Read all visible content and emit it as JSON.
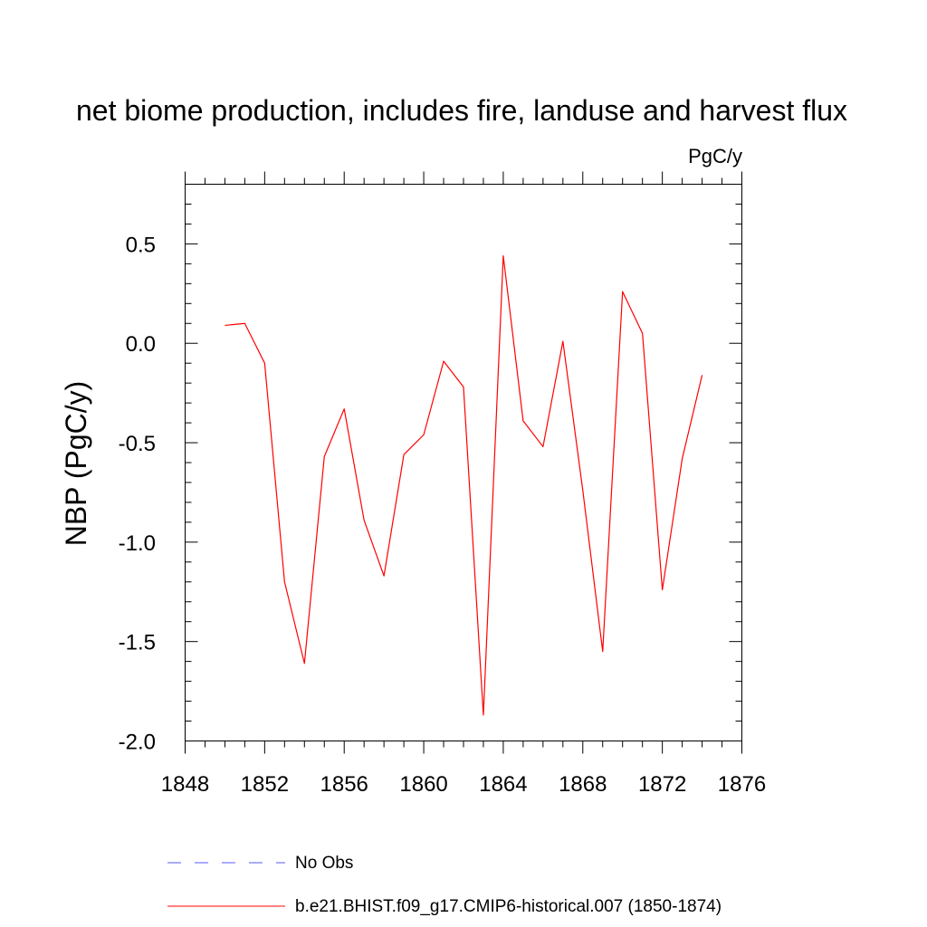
{
  "chart_data": {
    "type": "line",
    "title": "net biome production, includes fire, landuse and harvest flux",
    "units_label": "PgC/y",
    "ylabel": "NBP  (PgC/y)",
    "xlabel": "",
    "xlim": [
      1848,
      1876
    ],
    "ylim": [
      -2.0,
      0.8
    ],
    "x_ticks": [
      1848,
      1852,
      1856,
      1860,
      1864,
      1868,
      1872,
      1876
    ],
    "x_tick_labels": [
      "1848",
      "1852",
      "1856",
      "1860",
      "1864",
      "1868",
      "1872",
      "1876"
    ],
    "y_ticks": [
      -2.0,
      -1.5,
      -1.0,
      -0.5,
      0.0,
      0.5
    ],
    "y_tick_labels": [
      "-2.0",
      "-1.5",
      "-1.0",
      "-0.5",
      "0.0",
      "0.5"
    ],
    "grid": false,
    "legend_position": "bottom",
    "series": [
      {
        "name": "b.e21.BHIST.f09_g17.CMIP6-historical.007 (1850-1874)",
        "color": "#ff0000",
        "style": "solid",
        "x": [
          1850,
          1851,
          1852,
          1853,
          1854,
          1855,
          1856,
          1857,
          1858,
          1859,
          1860,
          1861,
          1862,
          1863,
          1864,
          1865,
          1866,
          1867,
          1868,
          1869,
          1870,
          1871,
          1872,
          1873,
          1874
        ],
        "values": [
          0.09,
          0.1,
          -0.1,
          -1.2,
          -1.61,
          -0.57,
          -0.33,
          -0.89,
          -1.17,
          -0.56,
          -0.46,
          -0.09,
          -0.22,
          -1.87,
          0.44,
          -0.39,
          -0.52,
          0.01,
          -0.74,
          -1.55,
          0.26,
          0.05,
          -1.24,
          -0.58,
          -0.16
        ]
      }
    ],
    "legend": [
      {
        "label": "No Obs",
        "color": "#5a5aff",
        "style": "dashed"
      },
      {
        "label": "b.e21.BHIST.f09_g17.CMIP6-historical.007 (1850-1874)",
        "color": "#ff0000",
        "style": "solid"
      }
    ]
  }
}
